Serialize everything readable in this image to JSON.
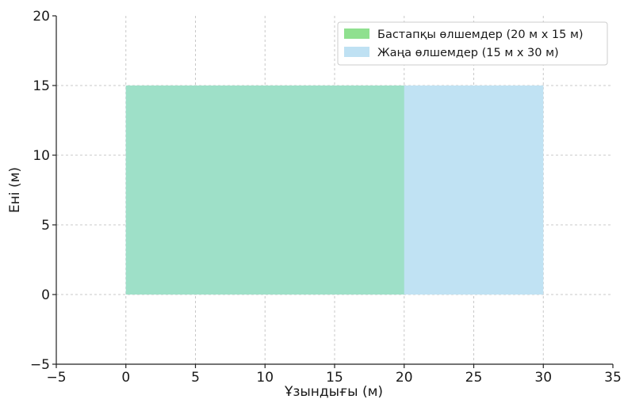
{
  "chart_data": {
    "type": "area",
    "title": "",
    "xlabel": "Ұзындығы (м)",
    "ylabel": "Ені (м)",
    "xlim": [
      -5,
      35
    ],
    "ylim": [
      -5,
      20
    ],
    "xticks": [
      -5,
      0,
      5,
      10,
      15,
      20,
      25,
      30,
      35
    ],
    "yticks": [
      -5,
      0,
      5,
      10,
      15,
      20
    ],
    "xtick_labels": [
      "−5",
      "0",
      "5",
      "10",
      "15",
      "20",
      "25",
      "30",
      "35"
    ],
    "ytick_labels": [
      "−5",
      "0",
      "5",
      "10",
      "15",
      "20"
    ],
    "grid": true,
    "legend_position": "top-right",
    "series": [
      {
        "name": "Бастапқы өлшемдер (20 м x 15 м)",
        "x": [
          0,
          20
        ],
        "y": [
          0,
          15
        ],
        "color": "#8fe08f",
        "fill_color": "#9ee0c8"
      },
      {
        "name": "Жаңа өлшемдер (15 м x 30 м)",
        "x": [
          0,
          30
        ],
        "y": [
          0,
          15
        ],
        "color": "#bfe1f3",
        "fill_color": "#c0e2f3"
      }
    ]
  }
}
